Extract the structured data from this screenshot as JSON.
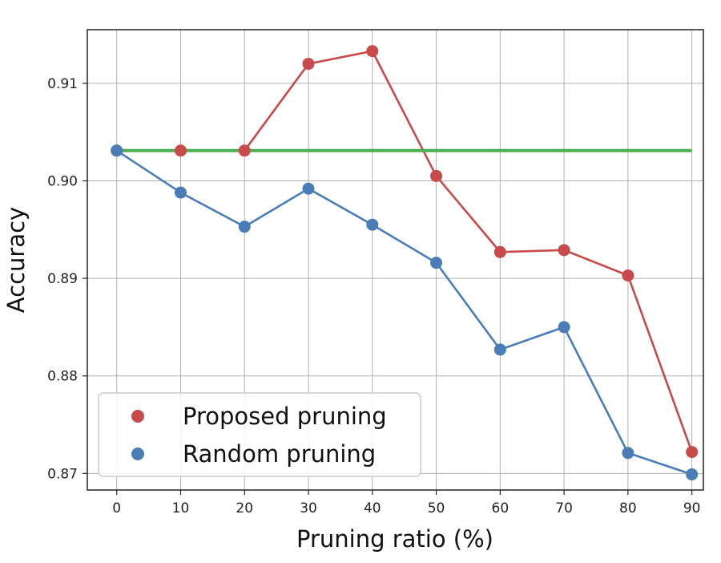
{
  "chart_data": {
    "type": "line",
    "title": "",
    "xlabel": "Pruning ratio (%)",
    "ylabel": "Accuracy",
    "x": [
      0,
      10,
      20,
      30,
      40,
      50,
      60,
      70,
      80,
      90
    ],
    "x_ticks": [
      "0",
      "10",
      "20",
      "30",
      "40",
      "50",
      "60",
      "70",
      "80",
      "90"
    ],
    "y_ticks": [
      "0.87",
      "0.88",
      "0.89",
      "0.90",
      "0.91"
    ],
    "xlim": [
      -4.6,
      91.8
    ],
    "ylim": [
      0.8683,
      0.9155
    ],
    "grid": true,
    "legend_position": "lower-left",
    "series": [
      {
        "name": "Proposed pruning",
        "color": "#c84a4a",
        "marker": "circle",
        "values": [
          0.9031,
          0.9031,
          0.9031,
          0.912,
          0.9133,
          0.9005,
          0.8927,
          0.8929,
          0.8903,
          0.8722
        ]
      },
      {
        "name": "Random pruning",
        "color": "#4a7db8",
        "marker": "circle",
        "values": [
          0.9031,
          0.8988,
          0.8953,
          0.8992,
          0.8955,
          0.8916,
          0.8827,
          0.885,
          0.8721,
          0.8699
        ]
      }
    ],
    "reference_line": {
      "color": "#4caf50",
      "x": [
        0,
        90
      ],
      "y": 0.9031
    }
  }
}
